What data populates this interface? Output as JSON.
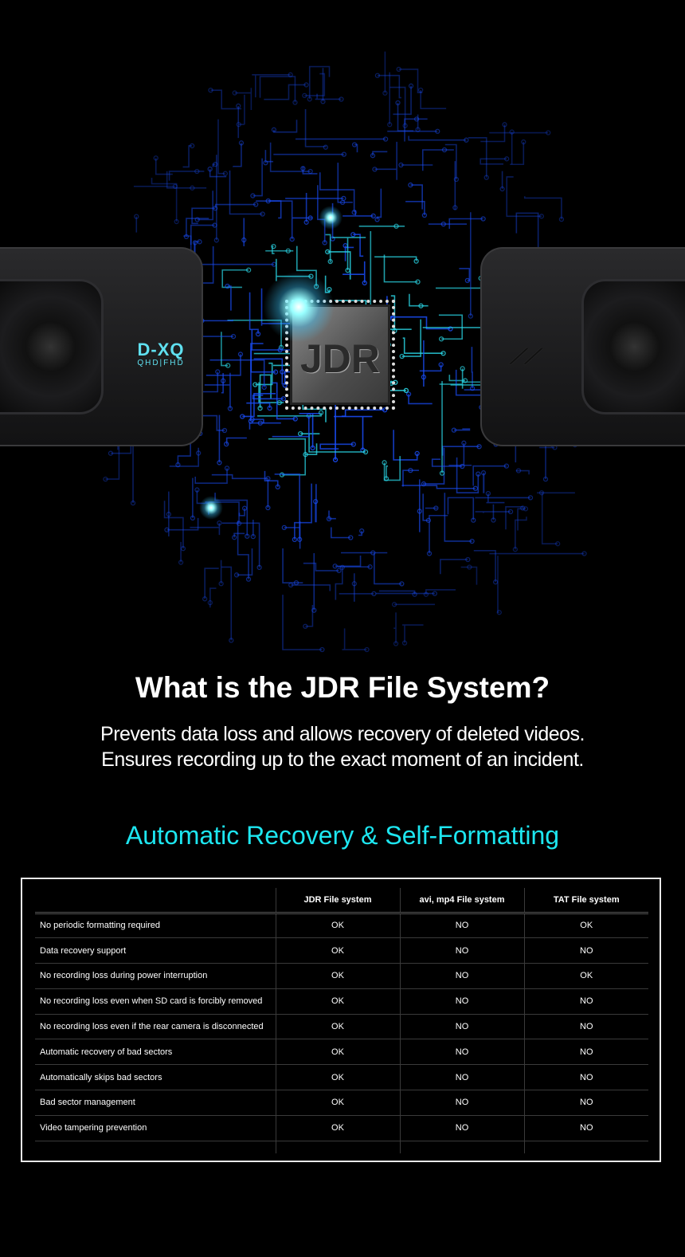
{
  "hero": {
    "chip_label": "JDR",
    "left_camera_brand": "D-XQ",
    "left_camera_sub": "QHD|FHD",
    "right_camera_logo": "rt",
    "circuit_color": "#1a5cff",
    "accent_color": "#1de6f0"
  },
  "heading": "What is the JDR File System?",
  "description": [
    "Prevents data loss and allows recovery of deleted videos.",
    "Ensures recording up to the exact moment of an incident."
  ],
  "subheading": "Automatic Recovery & Self-Formatting",
  "table": {
    "headers": [
      "",
      "JDR File system",
      "avi, mp4 File system",
      "TAT File system"
    ],
    "rows": [
      {
        "feature": "No periodic formatting required",
        "jdr": "OK",
        "avi": "NO",
        "tat": "OK"
      },
      {
        "feature": "Data recovery support",
        "jdr": "OK",
        "avi": "NO",
        "tat": "NO"
      },
      {
        "feature": "No recording loss during power interruption",
        "jdr": "OK",
        "avi": "NO",
        "tat": "OK"
      },
      {
        "feature": "No recording loss even when SD card is forcibly removed",
        "jdr": "OK",
        "avi": "NO",
        "tat": "NO"
      },
      {
        "feature": "No recording loss even if the rear camera is disconnected",
        "jdr": "OK",
        "avi": "NO",
        "tat": "NO"
      },
      {
        "feature": "Automatic recovery of bad sectors",
        "jdr": "OK",
        "avi": "NO",
        "tat": "NO"
      },
      {
        "feature": "Automatically skips bad sectors",
        "jdr": "OK",
        "avi": "NO",
        "tat": "NO"
      },
      {
        "feature": "Bad sector management",
        "jdr": "OK",
        "avi": "NO",
        "tat": "NO"
      },
      {
        "feature": "Video tampering prevention",
        "jdr": "OK",
        "avi": "NO",
        "tat": "NO"
      }
    ]
  }
}
